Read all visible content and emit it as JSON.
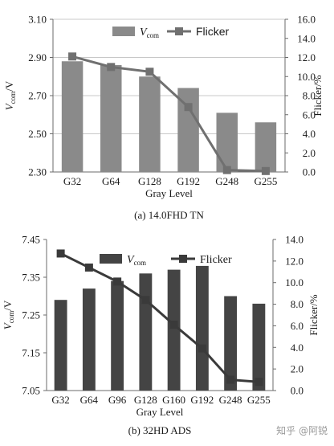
{
  "chart_data": [
    {
      "type": "bar+line",
      "caption": "(a) 14.0FHD TN",
      "xlabel": "Gray Level",
      "ylabel_main": "V",
      "ylabel_sub": "com",
      "ylabel_suffix": "/V",
      "y2label": "Flicker/%",
      "categories": [
        "G32",
        "G64",
        "G128",
        "G192",
        "G248",
        "G255"
      ],
      "ylim": [
        2.3,
        3.1
      ],
      "yticks": [
        "2.30",
        "2.50",
        "2.70",
        "2.90",
        "3.10"
      ],
      "y2lim": [
        0,
        16
      ],
      "y2ticks": [
        "0.0",
        "2.0",
        "4.0",
        "6.0",
        "8.0",
        "10.0",
        "12.0",
        "14.0",
        "16.0"
      ],
      "grid": true,
      "legend_position": "top",
      "legend": {
        "bar_main": "V",
        "bar_sub": "com",
        "line": "Flicker"
      },
      "series": [
        {
          "kind": "bar",
          "values": [
            2.88,
            2.86,
            2.8,
            2.74,
            2.61,
            2.56
          ],
          "color": "#8a8a8a"
        },
        {
          "kind": "line",
          "values": [
            12.1,
            11.0,
            10.5,
            6.8,
            0.2,
            0.1
          ],
          "color": "#707070"
        }
      ]
    },
    {
      "type": "bar+line",
      "caption": "(b) 32HD ADS",
      "xlabel": "Gray Level",
      "ylabel_main": "V",
      "ylabel_sub": "com",
      "ylabel_suffix": "/V",
      "y2label": "Flicker/%",
      "categories": [
        "G32",
        "G64",
        "G96",
        "G128",
        "G160",
        "G192",
        "G248",
        "G255"
      ],
      "ylim": [
        7.05,
        7.45
      ],
      "yticks": [
        "7.05",
        "7.15",
        "7.25",
        "7.35",
        "7.45"
      ],
      "y2lim": [
        0,
        14
      ],
      "y2ticks": [
        "0.0",
        "2.0",
        "4.0",
        "6.0",
        "8.0",
        "10.0",
        "12.0",
        "14.0"
      ],
      "grid": false,
      "legend_position": "top",
      "legend": {
        "bar_main": "V",
        "bar_sub": "com",
        "line": "Flicker"
      },
      "series": [
        {
          "kind": "bar",
          "values": [
            7.29,
            7.32,
            7.34,
            7.36,
            7.37,
            7.38,
            7.3,
            7.28
          ],
          "color": "#444444"
        },
        {
          "kind": "line",
          "values": [
            12.7,
            11.4,
            10.1,
            8.4,
            6.1,
            3.9,
            1.0,
            0.8
          ],
          "color": "#3a3a3a"
        }
      ]
    }
  ],
  "watermark": "知乎 @阿锐"
}
